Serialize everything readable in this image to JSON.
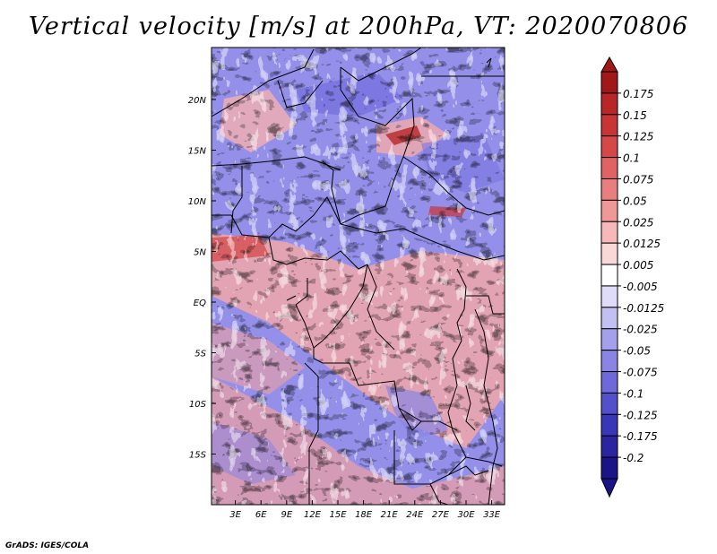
{
  "title": "Vertical velocity [m/s] at 200hPa, VT: 2020070806",
  "credit": "GrADS: IGES/COLA",
  "map": {
    "variable": "vertical velocity",
    "units": "m/s",
    "level": "200hPa",
    "lon_range_deg_east": [
      0,
      35
    ],
    "lat_range_deg": [
      -20,
      25
    ],
    "x_ticks": [
      "3E",
      "6E",
      "9E",
      "12E",
      "15E",
      "18E",
      "21E",
      "24E",
      "27E",
      "30E",
      "33E"
    ],
    "y_ticks": [
      "20N",
      "15N",
      "10N",
      "5N",
      "EQ",
      "5S",
      "10S",
      "15S"
    ]
  },
  "colorbar": {
    "labels": [
      "0.175",
      "0.15",
      "0.125",
      "0.1",
      "0.075",
      "0.05",
      "0.025",
      "0.0125",
      "0.005",
      "-0.005",
      "-0.0125",
      "-0.025",
      "-0.05",
      "-0.075",
      "-0.1",
      "-0.125",
      "-0.175",
      "-0.2"
    ],
    "colors": [
      "#a01818",
      "#b82626",
      "#c83434",
      "#d44848",
      "#e06262",
      "#e87e7e",
      "#f09898",
      "#f6b8b8",
      "#fbd8d8",
      "#ffffff",
      "#dedcf8",
      "#c2c0f2",
      "#a4a0ec",
      "#8a84e4",
      "#6e68da",
      "#5450cc",
      "#3a36b8",
      "#2a24a0",
      "#1a1488"
    ]
  }
}
